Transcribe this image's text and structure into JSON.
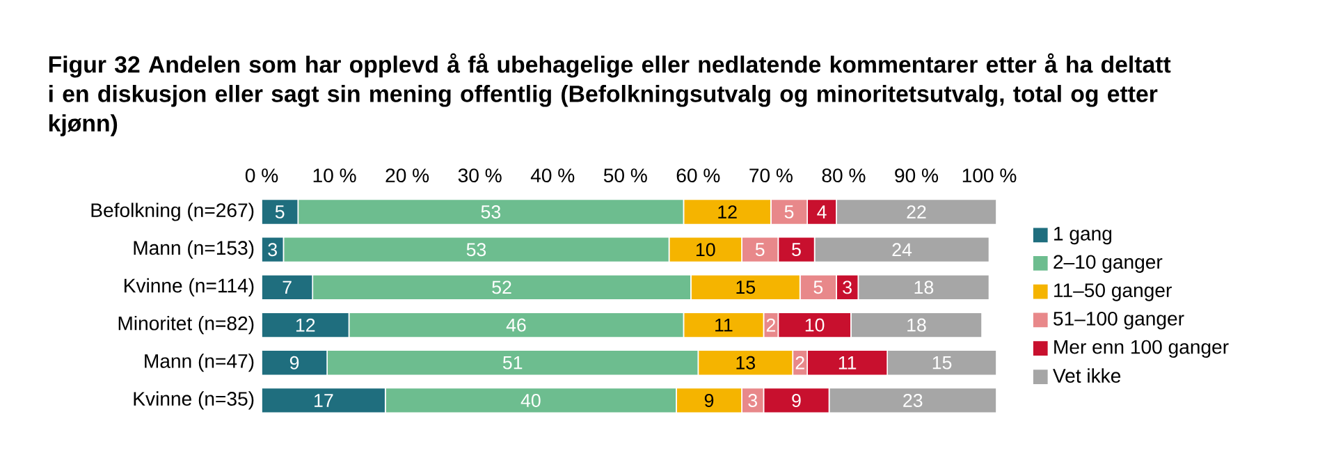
{
  "chart_data": {
    "type": "bar",
    "orientation": "horizontal",
    "stacked": true,
    "data_labels": true,
    "legend": "right",
    "grid": false,
    "title": "Figur 32 Andelen som har opplevd å få ubehagelige eller nedlatende kommentarer etter å ha deltatt i en diskusjon eller sagt sin mening offentlig (Befolkningsutvalg og minoritetsutvalg, total og etter kjønn)",
    "categories": [
      "Befolkning (n=267)",
      "Mann (n=153)",
      "Kvinne (n=114)",
      "Minoritet (n=82)",
      "Mann (n=47)",
      "Kvinne (n=35)"
    ],
    "xlim": [
      0,
      101
    ],
    "xticks": [
      {
        "value": 0,
        "label": "0 %"
      },
      {
        "value": 10,
        "label": "10 %"
      },
      {
        "value": 20,
        "label": "20 %"
      },
      {
        "value": 30,
        "label": "30 %"
      },
      {
        "value": 40,
        "label": "40 %"
      },
      {
        "value": 50,
        "label": "50 %"
      },
      {
        "value": 60,
        "label": "60 %"
      },
      {
        "value": 70,
        "label": "70 %"
      },
      {
        "value": 80,
        "label": "80 %"
      },
      {
        "value": 90,
        "label": "90 %"
      },
      {
        "value": 100,
        "label": "100 %"
      }
    ],
    "series": [
      {
        "name": "1 gang",
        "color": "#1f6e7e",
        "values": [
          5,
          3,
          7,
          12,
          9,
          17
        ]
      },
      {
        "name": "2–10 ganger",
        "color": "#6dbd8f",
        "values": [
          53,
          53,
          52,
          46,
          51,
          40
        ]
      },
      {
        "name": "11–50 ganger",
        "color": "#f5b400",
        "values": [
          12,
          10,
          15,
          11,
          13,
          9
        ]
      },
      {
        "name": "51–100 ganger",
        "color": "#e8888a",
        "values": [
          5,
          5,
          5,
          2,
          2,
          3
        ]
      },
      {
        "name": "Mer enn 100 ganger",
        "color": "#c8102e",
        "values": [
          4,
          5,
          3,
          10,
          11,
          9
        ]
      },
      {
        "name": "Vet ikke",
        "color": "#a6a6a6",
        "values": [
          22,
          24,
          18,
          18,
          15,
          23
        ]
      }
    ]
  }
}
